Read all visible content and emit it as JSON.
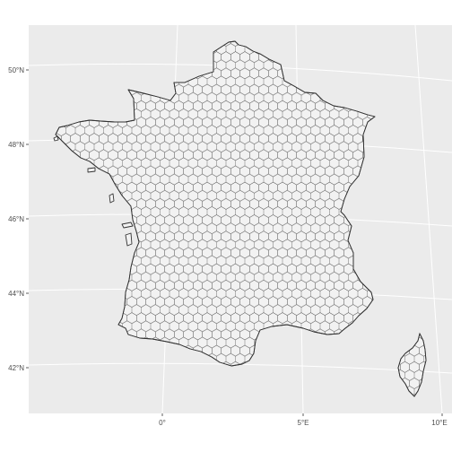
{
  "map": {
    "type": "hexagonal grid map",
    "panel_color": "#ebebeb",
    "grid_color": "#ffffff",
    "land_fill": "#f2f2f2",
    "outline_color": "#333333",
    "y_axis": {
      "labels": [
        "50°N",
        "48°N",
        "46°N",
        "44°N",
        "42°N"
      ]
    },
    "x_axis": {
      "labels": [
        "0°",
        "5°E",
        "10°E"
      ]
    }
  }
}
